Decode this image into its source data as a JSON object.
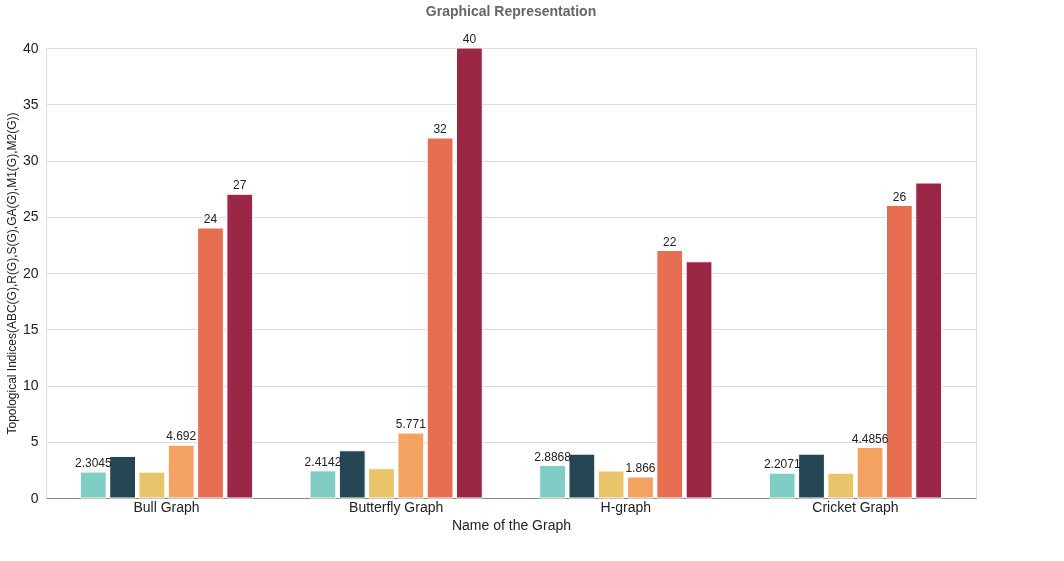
{
  "chart_data": {
    "type": "bar",
    "title": "Graphical Representation",
    "xlabel": "Name of the Graph",
    "ylabel": "Topological Indices(ABC(G),R(G),S(G),GA(G),M1(G),M2(G))",
    "categories": [
      "Bull Graph",
      "Butterfly Graph",
      "H-graph",
      "Cricket Graph"
    ],
    "ylim": [
      0,
      40
    ],
    "yticks": [
      0,
      5,
      10,
      15,
      20,
      25,
      30,
      35,
      40
    ],
    "grid": "y",
    "series": [
      {
        "color": "#7fcdc4",
        "values": [
          2.3045,
          2.4142,
          2.8868,
          2.2071
        ],
        "value_labels": [
          "2.3045",
          "2.4142",
          "2.8868",
          "2.2071"
        ]
      },
      {
        "color": "#264653",
        "values": [
          3.7,
          4.2,
          3.9,
          3.9
        ],
        "value_labels": [
          null,
          null,
          null,
          null
        ]
      },
      {
        "color": "#e9c46a",
        "values": [
          2.3,
          2.6,
          2.4,
          2.2
        ],
        "value_labels": [
          null,
          null,
          null,
          null
        ]
      },
      {
        "color": "#f4a261",
        "values": [
          4.692,
          5.771,
          1.866,
          4.4856
        ],
        "value_labels": [
          "4.692",
          "5.771",
          "1.866",
          "4.4856"
        ]
      },
      {
        "color": "#e76f51",
        "values": [
          24,
          32,
          22,
          26
        ],
        "value_labels": [
          "24",
          "32",
          "22",
          "26"
        ]
      },
      {
        "color": "#9b2746",
        "values": [
          27,
          40,
          21,
          28
        ],
        "value_labels": [
          "27",
          "40",
          null,
          null
        ]
      }
    ]
  }
}
